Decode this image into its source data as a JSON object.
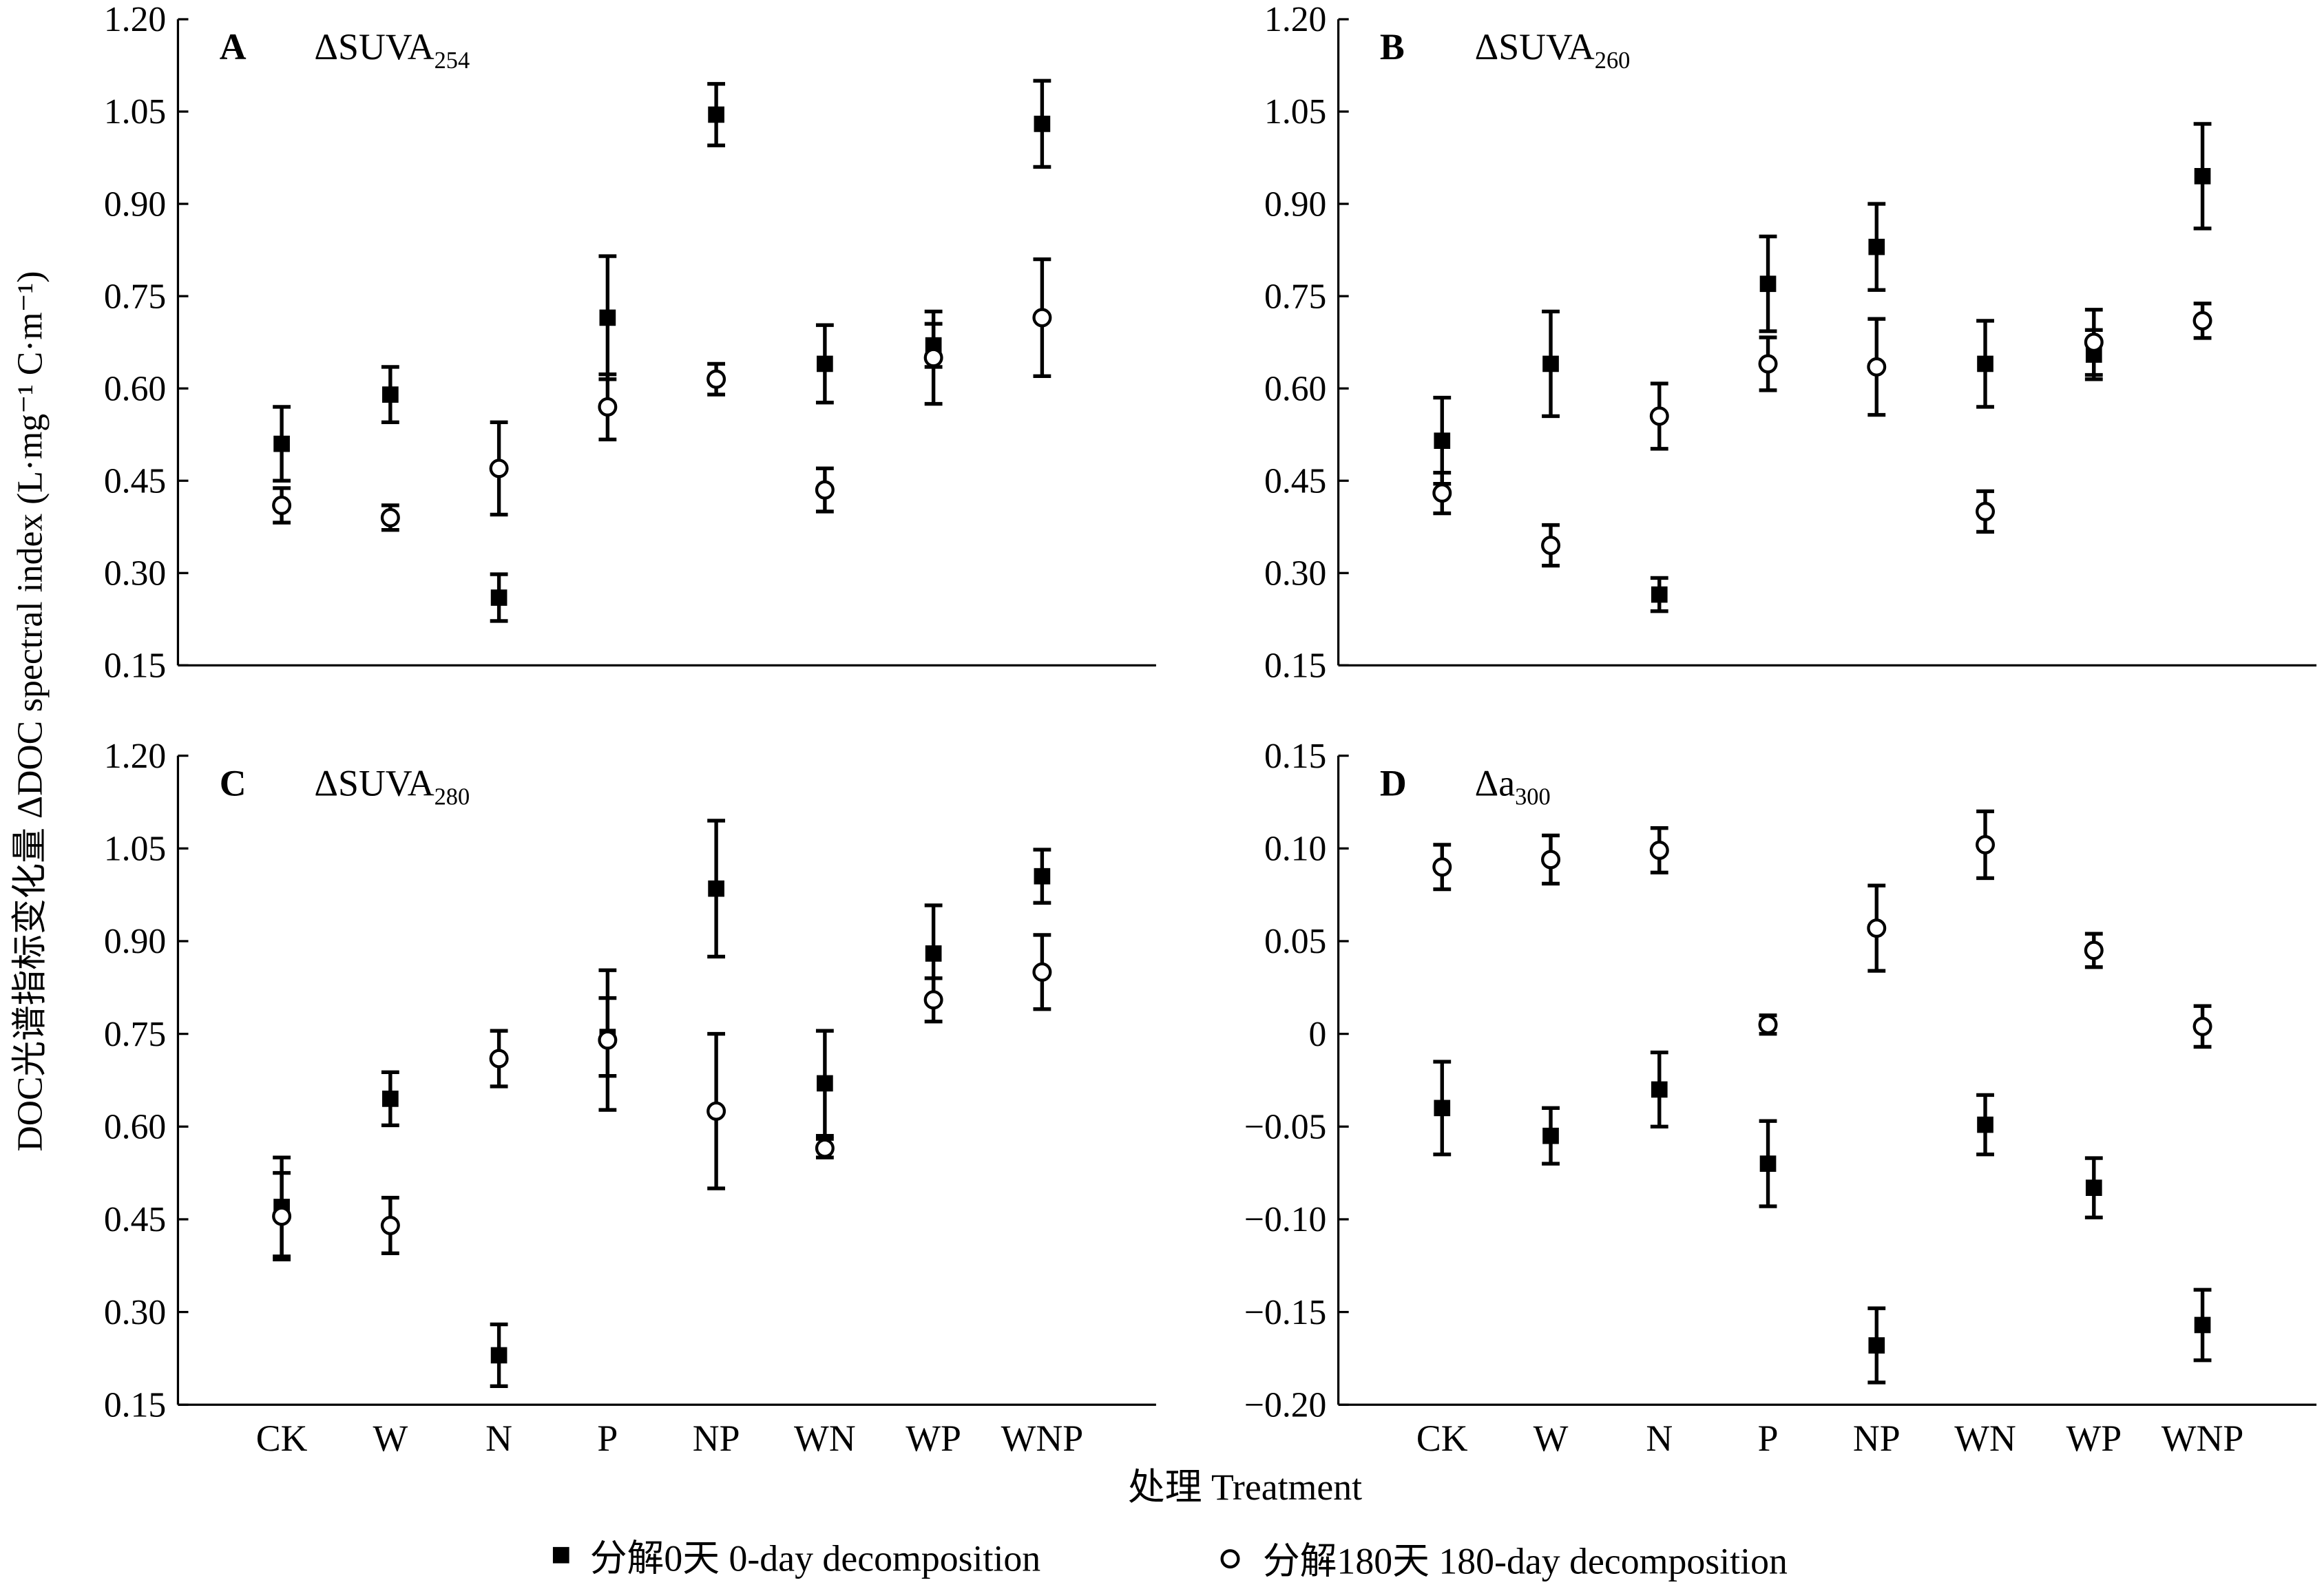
{
  "chart_data": [
    {
      "type": "scatter",
      "panel": "A",
      "title": "ΔSUVA",
      "title_sub": "254",
      "ylim": [
        0.15,
        1.2
      ],
      "yticks": [
        "0.15",
        "0.30",
        "0.45",
        "0.60",
        "0.75",
        "0.90",
        "1.05",
        "1.20"
      ],
      "categories": [
        "CK",
        "W",
        "N",
        "P",
        "NP",
        "WN",
        "WP",
        "WNP"
      ],
      "series": [
        {
          "name": "0-day",
          "values": [
            0.51,
            0.59,
            0.26,
            0.715,
            1.045,
            0.64,
            0.67,
            1.03
          ],
          "errors": [
            0.06,
            0.045,
            0.038,
            0.1,
            0.05,
            0.063,
            0.035,
            0.07
          ]
        },
        {
          "name": "180-day",
          "values": [
            0.41,
            0.39,
            0.47,
            0.57,
            0.615,
            0.435,
            0.65,
            0.715
          ],
          "errors": [
            0.028,
            0.02,
            0.075,
            0.053,
            0.025,
            0.035,
            0.075,
            0.095
          ]
        }
      ]
    },
    {
      "type": "scatter",
      "panel": "B",
      "title": "ΔSUVA",
      "title_sub": "260",
      "ylim": [
        0.15,
        1.2
      ],
      "yticks": [
        "0.15",
        "0.30",
        "0.45",
        "0.60",
        "0.75",
        "0.90",
        "1.05",
        "1.20"
      ],
      "categories": [
        "CK",
        "W",
        "N",
        "P",
        "NP",
        "WN",
        "WP",
        "WNP"
      ],
      "series": [
        {
          "name": "0-day",
          "values": [
            0.515,
            0.64,
            0.265,
            0.77,
            0.83,
            0.64,
            0.655,
            0.945
          ],
          "errors": [
            0.07,
            0.085,
            0.027,
            0.077,
            0.07,
            0.07,
            0.04,
            0.085
          ]
        },
        {
          "name": "180-day",
          "values": [
            0.43,
            0.345,
            0.555,
            0.64,
            0.635,
            0.4,
            0.675,
            0.71
          ],
          "errors": [
            0.033,
            0.033,
            0.053,
            0.043,
            0.078,
            0.033,
            0.053,
            0.028
          ]
        }
      ]
    },
    {
      "type": "scatter",
      "panel": "C",
      "title": "ΔSUVA",
      "title_sub": "280",
      "ylim": [
        0.15,
        1.2
      ],
      "yticks": [
        "0.15",
        "0.30",
        "0.45",
        "0.60",
        "0.75",
        "0.90",
        "1.05",
        "1.20"
      ],
      "categories": [
        "CK",
        "W",
        "N",
        "P",
        "NP",
        "WN",
        "WP",
        "WNP"
      ],
      "series": [
        {
          "name": "0-day",
          "values": [
            0.47,
            0.645,
            0.23,
            0.745,
            0.985,
            0.67,
            0.88,
            1.005
          ],
          "errors": [
            0.08,
            0.043,
            0.05,
            0.063,
            0.11,
            0.085,
            0.078,
            0.043
          ]
        },
        {
          "name": "180-day",
          "values": [
            0.455,
            0.44,
            0.71,
            0.74,
            0.625,
            0.565,
            0.805,
            0.85
          ],
          "errors": [
            0.07,
            0.045,
            0.045,
            0.113,
            0.125,
            0.015,
            0.035,
            0.06
          ]
        }
      ]
    },
    {
      "type": "scatter",
      "panel": "D",
      "title": "Δa",
      "title_sub": "300",
      "ylim": [
        -0.2,
        0.15
      ],
      "yticks": [
        "−0.20",
        "−0.15",
        "−0.10",
        "−0.05",
        "0",
        "0.05",
        "0.10",
        "0.15"
      ],
      "categories": [
        "CK",
        "W",
        "N",
        "P",
        "NP",
        "WN",
        "WP",
        "WNP"
      ],
      "series": [
        {
          "name": "0-day",
          "values": [
            -0.04,
            -0.055,
            -0.03,
            -0.07,
            -0.168,
            -0.049,
            -0.083,
            -0.157
          ],
          "errors": [
            0.025,
            0.015,
            0.02,
            0.023,
            0.02,
            0.016,
            0.016,
            0.019
          ]
        },
        {
          "name": "180-day",
          "values": [
            0.09,
            0.094,
            0.099,
            0.005,
            0.057,
            0.102,
            0.045,
            0.004
          ],
          "errors": [
            0.012,
            0.013,
            0.012,
            0.005,
            0.023,
            0.018,
            0.009,
            0.011
          ]
        }
      ]
    }
  ],
  "xlabel": "处理 Treatment",
  "ylabel": "DOC光谱指标变化量 ΔDOC spectral index (L·mg⁻¹ C·m⁻¹)",
  "legend": [
    {
      "label": "分解0天 0-day decomposition",
      "marker": "filled-square"
    },
    {
      "label": "分解180天 180-day decomposition",
      "marker": "open-circle"
    }
  ]
}
